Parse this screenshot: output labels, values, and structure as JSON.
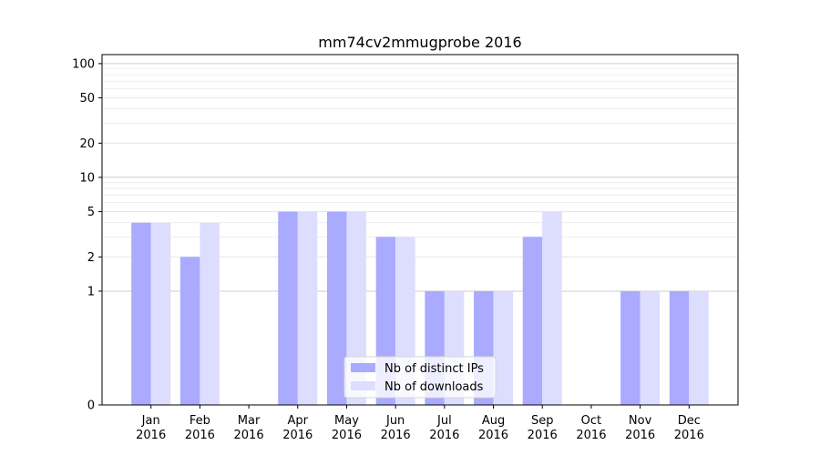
{
  "chart_data": {
    "type": "bar",
    "title": "mm74cv2mmugprobe 2016",
    "xlabel": "",
    "ylabel": "",
    "y_scale": "symlog",
    "ylim": [
      0,
      120
    ],
    "y_ticks": [
      0,
      1,
      2,
      5,
      10,
      20,
      50,
      100
    ],
    "y_tick_labels": [
      "0",
      "1",
      "2",
      "5",
      "10",
      "20",
      "50",
      "100"
    ],
    "categories": [
      {
        "month": "Jan",
        "year": "2016"
      },
      {
        "month": "Feb",
        "year": "2016"
      },
      {
        "month": "Mar",
        "year": "2016"
      },
      {
        "month": "Apr",
        "year": "2016"
      },
      {
        "month": "May",
        "year": "2016"
      },
      {
        "month": "Jun",
        "year": "2016"
      },
      {
        "month": "Jul",
        "year": "2016"
      },
      {
        "month": "Aug",
        "year": "2016"
      },
      {
        "month": "Sep",
        "year": "2016"
      },
      {
        "month": "Oct",
        "year": "2016"
      },
      {
        "month": "Nov",
        "year": "2016"
      },
      {
        "month": "Dec",
        "year": "2016"
      }
    ],
    "series": [
      {
        "name": "Nb of distinct IPs",
        "color": "#aaaaff",
        "values": [
          4,
          2,
          0,
          5,
          5,
          3,
          1,
          1,
          3,
          0,
          1,
          1
        ]
      },
      {
        "name": "Nb of downloads",
        "color": "#ddddff",
        "values": [
          4,
          4,
          0,
          5,
          5,
          3,
          1,
          1,
          5,
          0,
          1,
          1
        ]
      }
    ],
    "grid": true,
    "legend_position": "bottom-center"
  }
}
